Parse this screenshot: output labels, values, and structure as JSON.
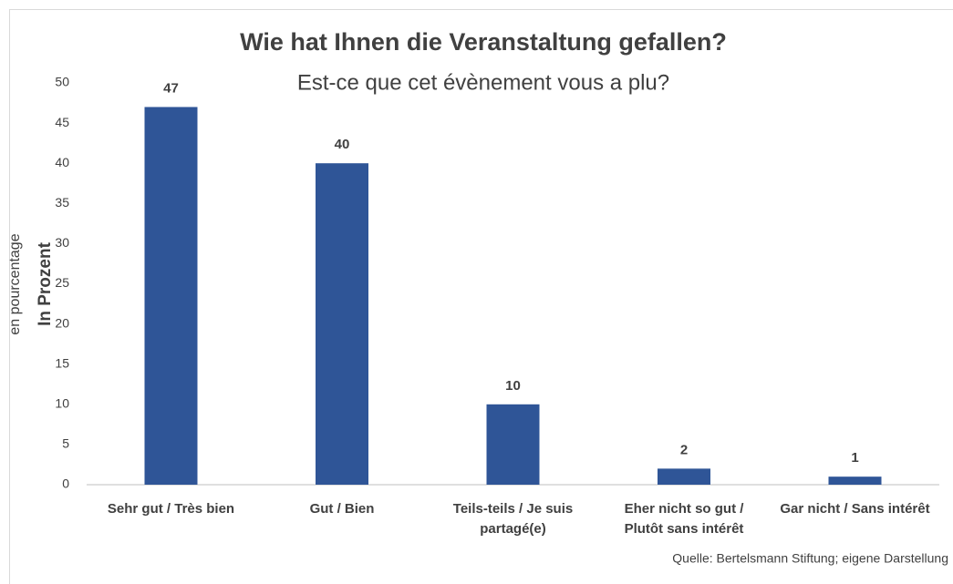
{
  "chart_data": {
    "type": "bar",
    "title": "Wie hat Ihnen die Veranstaltung gefallen?",
    "subtitle": "Est-ce que cet évènement vous a plu?",
    "y_label": "In Prozent",
    "y_label_secondary": "en pourcentage",
    "source": "Quelle: Bertelsmann Stiftung; eigene Darstellung",
    "categories": [
      "Sehr gut / Très bien",
      "Gut / Bien",
      "Teils-teils / Je suis partagé(e)",
      "Eher nicht so gut / Plutôt sans intérêt",
      "Gar nicht / Sans intérêt"
    ],
    "values": [
      47,
      40,
      10,
      2,
      1
    ],
    "color": "#2f5597",
    "ylim": [
      0,
      50
    ],
    "yticks": [
      0,
      5,
      10,
      15,
      20,
      25,
      30,
      35,
      40,
      45,
      50
    ],
    "grid": false
  }
}
